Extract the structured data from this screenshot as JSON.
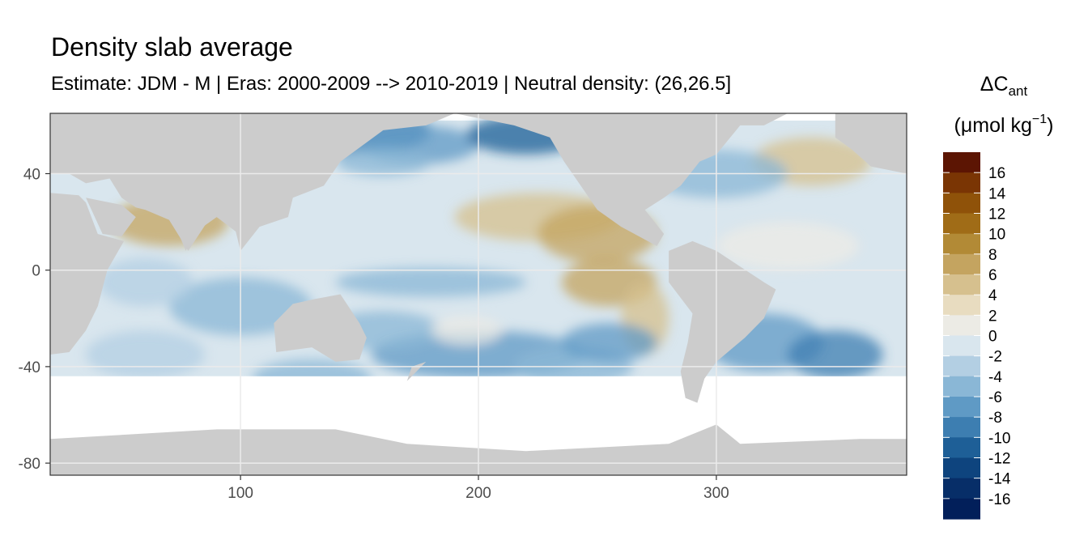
{
  "chart_data": {
    "type": "heatmap",
    "title": "Density slab average",
    "subtitle": "Estimate: JDM - M | Eras: 2000-2009 --> 2010-2019 | Neutral density: (26,26.5]",
    "xlabel": "",
    "ylabel": "",
    "xlim": [
      20,
      380
    ],
    "ylim": [
      -85,
      65
    ],
    "x_ticks": [
      100,
      200,
      300
    ],
    "y_ticks": [
      40,
      0,
      -40,
      -80
    ],
    "grid": true,
    "legend": {
      "title_main": "ΔC",
      "title_sub": "ant",
      "units_prefix": "(μmol kg",
      "units_sup": "−1",
      "units_suffix": ")",
      "placement": "right",
      "labels": [
        "16",
        "14",
        "12",
        "10",
        "8",
        "6",
        "4",
        "2",
        "0",
        "-2",
        "-4",
        "-6",
        "-8",
        "-10",
        "-12",
        "-14",
        "-16"
      ],
      "colors": [
        "#5c1503",
        "#7a3504",
        "#8f5209",
        "#a06c17",
        "#b28a36",
        "#c4a460",
        "#d6c08e",
        "#e8dcc0",
        "#ecebe5",
        "#d9e6ee",
        "#b3cfe3",
        "#8ab7d6",
        "#5f9ac5",
        "#3d7eb1",
        "#1e5f97",
        "#0e447e",
        "#072e68",
        "#021f5a"
      ]
    },
    "land_color": "#cccccc",
    "nodata_color": "#ffffff"
  }
}
